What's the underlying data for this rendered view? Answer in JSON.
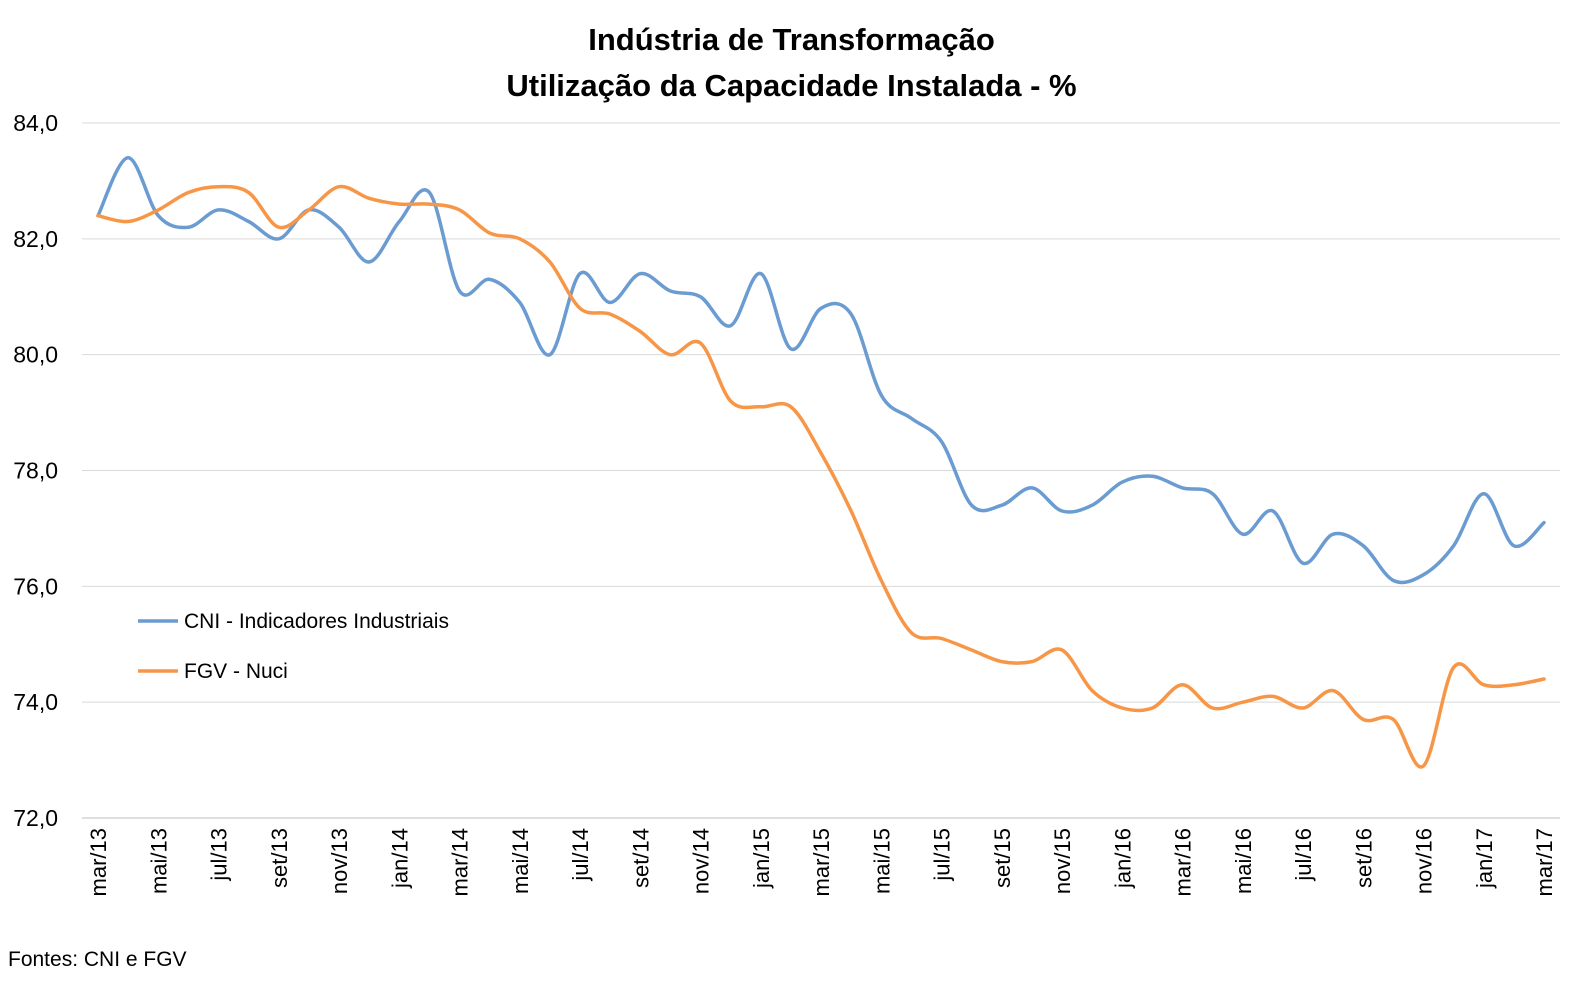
{
  "title_line1": "Indústria de Transformação",
  "title_line2": "Utilização da Capacidade Instalada - %",
  "source": "Fontes: CNI e FGV",
  "chart_data": {
    "type": "line",
    "title": "Indústria de Transformação\nUtilização da Capacidade Instalada - %",
    "xlabel": "",
    "ylabel": "",
    "ylim": [
      72,
      84
    ],
    "yticks": [
      "72,0",
      "74,0",
      "76,0",
      "78,0",
      "80,0",
      "82,0",
      "84,0"
    ],
    "grid": true,
    "legend_position": "left-middle",
    "x": [
      "mar/13",
      "abr/13",
      "mai/13",
      "jun/13",
      "jul/13",
      "ago/13",
      "set/13",
      "out/13",
      "nov/13",
      "dez/13",
      "jan/14",
      "fev/14",
      "mar/14",
      "abr/14",
      "mai/14",
      "jun/14",
      "jul/14",
      "ago/14",
      "set/14",
      "out/14",
      "nov/14",
      "dez/14",
      "jan/15",
      "fev/15",
      "mar/15",
      "abr/15",
      "mai/15",
      "jun/15",
      "jul/15",
      "ago/15",
      "set/15",
      "out/15",
      "nov/15",
      "dez/15",
      "jan/16",
      "fev/16",
      "mar/16",
      "abr/16",
      "mai/16",
      "jun/16",
      "jul/16",
      "ago/16",
      "set/16",
      "out/16",
      "nov/16",
      "dez/16",
      "jan/17",
      "fev/17",
      "mar/17"
    ],
    "xticks_shown": [
      "mar/13",
      "mai/13",
      "jul/13",
      "set/13",
      "nov/13",
      "jan/14",
      "mar/14",
      "mai/14",
      "jul/14",
      "set/14",
      "nov/14",
      "jan/15",
      "mar/15",
      "mai/15",
      "jul/15",
      "set/15",
      "nov/15",
      "jan/16",
      "mar/16",
      "mai/16",
      "jul/16",
      "set/16",
      "nov/16",
      "jan/17",
      "mar/17"
    ],
    "series": [
      {
        "name": "CNI - Indicadores Industriais",
        "color": "#6a9bd1",
        "values": [
          82.4,
          83.4,
          82.4,
          82.2,
          82.5,
          82.3,
          82.0,
          82.5,
          82.2,
          81.6,
          82.3,
          82.8,
          81.1,
          81.3,
          80.9,
          80.0,
          81.4,
          80.9,
          81.4,
          81.1,
          81.0,
          80.5,
          81.4,
          80.1,
          80.8,
          80.7,
          79.3,
          78.9,
          78.5,
          77.4,
          77.4,
          77.7,
          77.3,
          77.4,
          77.8,
          77.9,
          77.7,
          77.6,
          76.9,
          77.3,
          76.4,
          76.9,
          76.7,
          76.1,
          76.2,
          76.7,
          77.6,
          76.7,
          77.1
        ]
      },
      {
        "name": "FGV - Nuci",
        "color": "#f79646",
        "values": [
          82.4,
          82.3,
          82.5,
          82.8,
          82.9,
          82.8,
          82.2,
          82.5,
          82.9,
          82.7,
          82.6,
          82.6,
          82.5,
          82.1,
          82.0,
          81.6,
          80.8,
          80.7,
          80.4,
          80.0,
          80.2,
          79.2,
          79.1,
          79.1,
          78.3,
          77.3,
          76.1,
          75.2,
          75.1,
          74.9,
          74.7,
          74.7,
          74.9,
          74.2,
          73.9,
          73.9,
          74.3,
          73.9,
          74.0,
          74.1,
          73.9,
          74.2,
          73.7,
          73.7,
          72.9,
          74.6,
          74.3,
          74.3,
          74.4
        ]
      }
    ]
  }
}
